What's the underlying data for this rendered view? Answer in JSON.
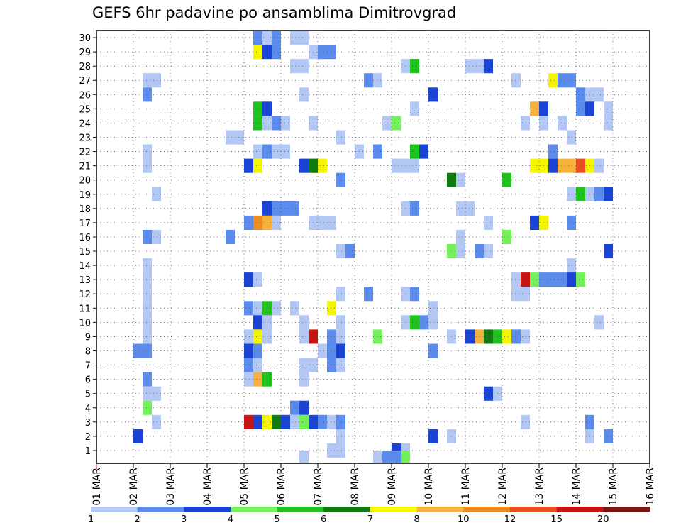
{
  "chart_data": {
    "type": "heatmap",
    "title": "GEFS 6hr padavine po ansamblima Dimitrovgrad",
    "xlabel": "",
    "ylabel": "",
    "x_ticks": [
      "01 MAR",
      "02 MAR",
      "03 MAR",
      "04 MAR",
      "05 MAR",
      "06 MAR",
      "07 MAR",
      "08 MAR",
      "09 MAR",
      "10 MAR",
      "11 MAR",
      "12 MAR",
      "13 MAR",
      "14 MAR",
      "15 MAR",
      "16 MAR"
    ],
    "y_ticks": [
      "1",
      "2",
      "3",
      "4",
      "5",
      "6",
      "7",
      "8",
      "9",
      "10",
      "11",
      "12",
      "13",
      "14",
      "15",
      "16",
      "17",
      "18",
      "19",
      "20",
      "21",
      "22",
      "23",
      "24",
      "25",
      "26",
      "27",
      "28",
      "29",
      "30"
    ],
    "time_step_hours": 6,
    "grid": true,
    "legend": {
      "placement": "bottom",
      "labels": [
        "1",
        "2",
        "3",
        "4",
        "5",
        "6",
        "7",
        "8",
        "10",
        "12",
        "15",
        "20"
      ],
      "colors": [
        "#b3c7f5",
        "#5b8ced",
        "#1a44d6",
        "#74f05a",
        "#1ec31e",
        "#117a11",
        "#f5f500",
        "#f5b13c",
        "#f08c1e",
        "#e6501e",
        "#c81414",
        "#781414"
      ]
    },
    "colors": {
      "1": "#b3c7f5",
      "2": "#5b8ced",
      "3": "#1a44d6",
      "4": "#74f05a",
      "5": "#1ec31e",
      "6": "#117a11",
      "7": "#f5f500",
      "8": "#f5b13c",
      "10": "#f08c1e",
      "12": "#e6501e",
      "15": "#c81414",
      "20": "#781414"
    },
    "cells_description": "Each cell: member (y), x = days since 01 MAR 00z (6-hour steps), v = lower bound of precipitation class (mm)",
    "cells": [
      {
        "y": 30,
        "x": 4.25,
        "v": 2
      },
      {
        "y": 30,
        "x": 4.5,
        "v": 1
      },
      {
        "y": 30,
        "x": 4.75,
        "v": 2
      },
      {
        "y": 30,
        "x": 5.25,
        "v": 1
      },
      {
        "y": 30,
        "x": 5.5,
        "v": 1
      },
      {
        "y": 29,
        "x": 4.25,
        "v": 7
      },
      {
        "y": 29,
        "x": 4.5,
        "v": 3
      },
      {
        "y": 29,
        "x": 4.75,
        "v": 2
      },
      {
        "y": 29,
        "x": 5.75,
        "v": 1
      },
      {
        "y": 29,
        "x": 6.0,
        "v": 2
      },
      {
        "y": 29,
        "x": 6.25,
        "v": 2
      },
      {
        "y": 28,
        "x": 5.25,
        "v": 1
      },
      {
        "y": 28,
        "x": 5.5,
        "v": 1
      },
      {
        "y": 28,
        "x": 8.25,
        "v": 1
      },
      {
        "y": 28,
        "x": 8.5,
        "v": 5
      },
      {
        "y": 28,
        "x": 10.0,
        "v": 1
      },
      {
        "y": 28,
        "x": 10.25,
        "v": 1
      },
      {
        "y": 28,
        "x": 10.5,
        "v": 3
      },
      {
        "y": 27,
        "x": 1.25,
        "v": 1
      },
      {
        "y": 27,
        "x": 1.5,
        "v": 1
      },
      {
        "y": 27,
        "x": 7.25,
        "v": 2
      },
      {
        "y": 27,
        "x": 7.5,
        "v": 1
      },
      {
        "y": 27,
        "x": 11.25,
        "v": 1
      },
      {
        "y": 27,
        "x": 12.25,
        "v": 7
      },
      {
        "y": 27,
        "x": 12.5,
        "v": 2
      },
      {
        "y": 27,
        "x": 12.75,
        "v": 2
      },
      {
        "y": 26,
        "x": 1.25,
        "v": 2
      },
      {
        "y": 26,
        "x": 5.5,
        "v": 1
      },
      {
        "y": 26,
        "x": 9.0,
        "v": 3
      },
      {
        "y": 26,
        "x": 13.0,
        "v": 2
      },
      {
        "y": 26,
        "x": 13.25,
        "v": 1
      },
      {
        "y": 26,
        "x": 13.5,
        "v": 1
      },
      {
        "y": 25,
        "x": 4.25,
        "v": 5
      },
      {
        "y": 25,
        "x": 4.5,
        "v": 3
      },
      {
        "y": 25,
        "x": 8.5,
        "v": 1
      },
      {
        "y": 25,
        "x": 11.75,
        "v": 8
      },
      {
        "y": 25,
        "x": 12.0,
        "v": 3
      },
      {
        "y": 25,
        "x": 13.0,
        "v": 2
      },
      {
        "y": 25,
        "x": 13.25,
        "v": 3
      },
      {
        "y": 25,
        "x": 13.75,
        "v": 1
      },
      {
        "y": 24,
        "x": 4.25,
        "v": 5
      },
      {
        "y": 24,
        "x": 4.5,
        "v": 1
      },
      {
        "y": 24,
        "x": 4.75,
        "v": 2
      },
      {
        "y": 24,
        "x": 5.0,
        "v": 1
      },
      {
        "y": 24,
        "x": 5.75,
        "v": 1
      },
      {
        "y": 24,
        "x": 7.75,
        "v": 1
      },
      {
        "y": 24,
        "x": 8.0,
        "v": 4
      },
      {
        "y": 24,
        "x": 11.5,
        "v": 1
      },
      {
        "y": 24,
        "x": 12.0,
        "v": 1
      },
      {
        "y": 24,
        "x": 12.5,
        "v": 1
      },
      {
        "y": 24,
        "x": 13.75,
        "v": 1
      },
      {
        "y": 23,
        "x": 3.5,
        "v": 1
      },
      {
        "y": 23,
        "x": 3.75,
        "v": 1
      },
      {
        "y": 23,
        "x": 6.5,
        "v": 1
      },
      {
        "y": 23,
        "x": 12.75,
        "v": 1
      },
      {
        "y": 22,
        "x": 1.25,
        "v": 1
      },
      {
        "y": 22,
        "x": 4.25,
        "v": 1
      },
      {
        "y": 22,
        "x": 4.5,
        "v": 2
      },
      {
        "y": 22,
        "x": 4.75,
        "v": 1
      },
      {
        "y": 22,
        "x": 5.0,
        "v": 1
      },
      {
        "y": 22,
        "x": 7.0,
        "v": 1
      },
      {
        "y": 22,
        "x": 7.5,
        "v": 2
      },
      {
        "y": 22,
        "x": 8.5,
        "v": 5
      },
      {
        "y": 22,
        "x": 8.75,
        "v": 3
      },
      {
        "y": 22,
        "x": 12.25,
        "v": 2
      },
      {
        "y": 21,
        "x": 1.25,
        "v": 1
      },
      {
        "y": 21,
        "x": 4.0,
        "v": 3
      },
      {
        "y": 21,
        "x": 4.25,
        "v": 7
      },
      {
        "y": 21,
        "x": 5.5,
        "v": 3
      },
      {
        "y": 21,
        "x": 5.75,
        "v": 6
      },
      {
        "y": 21,
        "x": 6.0,
        "v": 7
      },
      {
        "y": 21,
        "x": 8.0,
        "v": 1
      },
      {
        "y": 21,
        "x": 8.25,
        "v": 1
      },
      {
        "y": 21,
        "x": 8.5,
        "v": 1
      },
      {
        "y": 21,
        "x": 11.75,
        "v": 7
      },
      {
        "y": 21,
        "x": 12.0,
        "v": 7
      },
      {
        "y": 21,
        "x": 12.25,
        "v": 3
      },
      {
        "y": 21,
        "x": 12.5,
        "v": 8
      },
      {
        "y": 21,
        "x": 12.75,
        "v": 8
      },
      {
        "y": 21,
        "x": 13.0,
        "v": 12
      },
      {
        "y": 21,
        "x": 13.25,
        "v": 7
      },
      {
        "y": 21,
        "x": 13.5,
        "v": 1
      },
      {
        "y": 20,
        "x": 6.5,
        "v": 2
      },
      {
        "y": 20,
        "x": 9.5,
        "v": 6
      },
      {
        "y": 20,
        "x": 9.75,
        "v": 1
      },
      {
        "y": 20,
        "x": 11.0,
        "v": 5
      },
      {
        "y": 19,
        "x": 1.5,
        "v": 1
      },
      {
        "y": 19,
        "x": 12.75,
        "v": 1
      },
      {
        "y": 19,
        "x": 13.0,
        "v": 5
      },
      {
        "y": 19,
        "x": 13.25,
        "v": 1
      },
      {
        "y": 19,
        "x": 13.5,
        "v": 2
      },
      {
        "y": 19,
        "x": 13.75,
        "v": 3
      },
      {
        "y": 18,
        "x": 4.5,
        "v": 3
      },
      {
        "y": 18,
        "x": 4.75,
        "v": 2
      },
      {
        "y": 18,
        "x": 5.0,
        "v": 2
      },
      {
        "y": 18,
        "x": 5.25,
        "v": 2
      },
      {
        "y": 18,
        "x": 8.25,
        "v": 1
      },
      {
        "y": 18,
        "x": 8.5,
        "v": 2
      },
      {
        "y": 18,
        "x": 9.75,
        "v": 1
      },
      {
        "y": 18,
        "x": 10.0,
        "v": 1
      },
      {
        "y": 17,
        "x": 4.0,
        "v": 2
      },
      {
        "y": 17,
        "x": 4.25,
        "v": 10
      },
      {
        "y": 17,
        "x": 4.5,
        "v": 8
      },
      {
        "y": 17,
        "x": 4.75,
        "v": 1
      },
      {
        "y": 17,
        "x": 5.75,
        "v": 1
      },
      {
        "y": 17,
        "x": 6.0,
        "v": 1
      },
      {
        "y": 17,
        "x": 6.25,
        "v": 1
      },
      {
        "y": 17,
        "x": 10.5,
        "v": 1
      },
      {
        "y": 17,
        "x": 11.75,
        "v": 3
      },
      {
        "y": 17,
        "x": 12.0,
        "v": 7
      },
      {
        "y": 17,
        "x": 12.75,
        "v": 2
      },
      {
        "y": 16,
        "x": 1.25,
        "v": 2
      },
      {
        "y": 16,
        "x": 1.5,
        "v": 1
      },
      {
        "y": 16,
        "x": 3.5,
        "v": 2
      },
      {
        "y": 16,
        "x": 9.75,
        "v": 1
      },
      {
        "y": 16,
        "x": 11.0,
        "v": 4
      },
      {
        "y": 15,
        "x": 6.5,
        "v": 1
      },
      {
        "y": 15,
        "x": 6.75,
        "v": 2
      },
      {
        "y": 15,
        "x": 9.5,
        "v": 4
      },
      {
        "y": 15,
        "x": 9.75,
        "v": 1
      },
      {
        "y": 15,
        "x": 10.25,
        "v": 2
      },
      {
        "y": 15,
        "x": 10.5,
        "v": 1
      },
      {
        "y": 15,
        "x": 13.75,
        "v": 3
      },
      {
        "y": 14,
        "x": 1.25,
        "v": 1
      },
      {
        "y": 14,
        "x": 12.75,
        "v": 1
      },
      {
        "y": 13,
        "x": 1.25,
        "v": 1
      },
      {
        "y": 13,
        "x": 4.0,
        "v": 3
      },
      {
        "y": 13,
        "x": 4.25,
        "v": 1
      },
      {
        "y": 13,
        "x": 11.25,
        "v": 1
      },
      {
        "y": 13,
        "x": 11.5,
        "v": 15
      },
      {
        "y": 13,
        "x": 11.75,
        "v": 4
      },
      {
        "y": 13,
        "x": 12.0,
        "v": 2
      },
      {
        "y": 13,
        "x": 12.25,
        "v": 2
      },
      {
        "y": 13,
        "x": 12.5,
        "v": 2
      },
      {
        "y": 13,
        "x": 12.75,
        "v": 3
      },
      {
        "y": 13,
        "x": 13.0,
        "v": 4
      },
      {
        "y": 12,
        "x": 1.25,
        "v": 1
      },
      {
        "y": 12,
        "x": 6.5,
        "v": 1
      },
      {
        "y": 12,
        "x": 7.25,
        "v": 2
      },
      {
        "y": 12,
        "x": 8.25,
        "v": 1
      },
      {
        "y": 12,
        "x": 8.5,
        "v": 2
      },
      {
        "y": 12,
        "x": 11.25,
        "v": 1
      },
      {
        "y": 12,
        "x": 11.5,
        "v": 1
      },
      {
        "y": 11,
        "x": 1.25,
        "v": 1
      },
      {
        "y": 11,
        "x": 4.0,
        "v": 2
      },
      {
        "y": 11,
        "x": 4.25,
        "v": 1
      },
      {
        "y": 11,
        "x": 4.5,
        "v": 5
      },
      {
        "y": 11,
        "x": 4.75,
        "v": 1
      },
      {
        "y": 11,
        "x": 5.25,
        "v": 1
      },
      {
        "y": 11,
        "x": 6.25,
        "v": 7
      },
      {
        "y": 11,
        "x": 9.0,
        "v": 1
      },
      {
        "y": 10,
        "x": 1.25,
        "v": 1
      },
      {
        "y": 10,
        "x": 4.25,
        "v": 3
      },
      {
        "y": 10,
        "x": 4.5,
        "v": 1
      },
      {
        "y": 10,
        "x": 5.5,
        "v": 1
      },
      {
        "y": 10,
        "x": 6.5,
        "v": 1
      },
      {
        "y": 10,
        "x": 8.25,
        "v": 1
      },
      {
        "y": 10,
        "x": 8.5,
        "v": 5
      },
      {
        "y": 10,
        "x": 8.75,
        "v": 2
      },
      {
        "y": 10,
        "x": 9.0,
        "v": 1
      },
      {
        "y": 10,
        "x": 13.5,
        "v": 1
      },
      {
        "y": 9,
        "x": 1.25,
        "v": 1
      },
      {
        "y": 9,
        "x": 4.0,
        "v": 1
      },
      {
        "y": 9,
        "x": 4.25,
        "v": 7
      },
      {
        "y": 9,
        "x": 4.5,
        "v": 1
      },
      {
        "y": 9,
        "x": 5.5,
        "v": 1
      },
      {
        "y": 9,
        "x": 5.75,
        "v": 15
      },
      {
        "y": 9,
        "x": 6.25,
        "v": 2
      },
      {
        "y": 9,
        "x": 6.5,
        "v": 1
      },
      {
        "y": 9,
        "x": 7.5,
        "v": 4
      },
      {
        "y": 9,
        "x": 9.5,
        "v": 1
      },
      {
        "y": 9,
        "x": 10.0,
        "v": 3
      },
      {
        "y": 9,
        "x": 10.25,
        "v": 8
      },
      {
        "y": 9,
        "x": 10.5,
        "v": 6
      },
      {
        "y": 9,
        "x": 10.75,
        "v": 5
      },
      {
        "y": 9,
        "x": 11.0,
        "v": 7
      },
      {
        "y": 9,
        "x": 11.25,
        "v": 2
      },
      {
        "y": 9,
        "x": 11.5,
        "v": 1
      },
      {
        "y": 8,
        "x": 1.0,
        "v": 2
      },
      {
        "y": 8,
        "x": 1.25,
        "v": 2
      },
      {
        "y": 8,
        "x": 4.0,
        "v": 3
      },
      {
        "y": 8,
        "x": 4.25,
        "v": 2
      },
      {
        "y": 8,
        "x": 6.0,
        "v": 1
      },
      {
        "y": 8,
        "x": 6.25,
        "v": 2
      },
      {
        "y": 8,
        "x": 6.5,
        "v": 3
      },
      {
        "y": 8,
        "x": 9.0,
        "v": 2
      },
      {
        "y": 7,
        "x": 4.0,
        "v": 2
      },
      {
        "y": 7,
        "x": 4.25,
        "v": 1
      },
      {
        "y": 7,
        "x": 5.5,
        "v": 1
      },
      {
        "y": 7,
        "x": 5.75,
        "v": 1
      },
      {
        "y": 7,
        "x": 6.25,
        "v": 2
      },
      {
        "y": 7,
        "x": 6.5,
        "v": 1
      },
      {
        "y": 6,
        "x": 1.25,
        "v": 2
      },
      {
        "y": 6,
        "x": 4.0,
        "v": 1
      },
      {
        "y": 6,
        "x": 4.25,
        "v": 8
      },
      {
        "y": 6,
        "x": 4.5,
        "v": 5
      },
      {
        "y": 6,
        "x": 5.5,
        "v": 1
      },
      {
        "y": 5,
        "x": 1.25,
        "v": 1
      },
      {
        "y": 5,
        "x": 1.5,
        "v": 1
      },
      {
        "y": 5,
        "x": 10.5,
        "v": 3
      },
      {
        "y": 5,
        "x": 10.75,
        "v": 1
      },
      {
        "y": 4,
        "x": 1.25,
        "v": 4
      },
      {
        "y": 4,
        "x": 5.25,
        "v": 2
      },
      {
        "y": 4,
        "x": 5.5,
        "v": 3
      },
      {
        "y": 3,
        "x": 1.5,
        "v": 1
      },
      {
        "y": 3,
        "x": 4.0,
        "v": 15
      },
      {
        "y": 3,
        "x": 4.25,
        "v": 3
      },
      {
        "y": 3,
        "x": 4.5,
        "v": 7
      },
      {
        "y": 3,
        "x": 4.75,
        "v": 6
      },
      {
        "y": 3,
        "x": 5.0,
        "v": 3
      },
      {
        "y": 3,
        "x": 5.25,
        "v": 1
      },
      {
        "y": 3,
        "x": 5.5,
        "v": 4
      },
      {
        "y": 3,
        "x": 5.75,
        "v": 3
      },
      {
        "y": 3,
        "x": 6.0,
        "v": 2
      },
      {
        "y": 3,
        "x": 6.25,
        "v": 1
      },
      {
        "y": 3,
        "x": 6.5,
        "v": 2
      },
      {
        "y": 3,
        "x": 11.5,
        "v": 1
      },
      {
        "y": 3,
        "x": 13.25,
        "v": 2
      },
      {
        "y": 2,
        "x": 1.0,
        "v": 3
      },
      {
        "y": 2,
        "x": 6.5,
        "v": 1
      },
      {
        "y": 2,
        "x": 9.0,
        "v": 3
      },
      {
        "y": 2,
        "x": 9.5,
        "v": 1
      },
      {
        "y": 2,
        "x": 13.25,
        "v": 1
      },
      {
        "y": 2,
        "x": 13.75,
        "v": 2
      },
      {
        "y": 1,
        "x": 6.25,
        "v": 1
      },
      {
        "y": 1,
        "x": 6.5,
        "v": 1
      },
      {
        "y": 1,
        "x": 8.0,
        "v": 3
      },
      {
        "y": 1,
        "x": 8.25,
        "v": 1
      },
      {
        "y": 0.5,
        "x": 5.5,
        "v": 1
      },
      {
        "y": 0.5,
        "x": 7.5,
        "v": 1
      },
      {
        "y": 0.5,
        "x": 7.75,
        "v": 2
      },
      {
        "y": 0.5,
        "x": 8.0,
        "v": 2
      },
      {
        "y": 0.5,
        "x": 8.25,
        "v": 4
      }
    ]
  }
}
